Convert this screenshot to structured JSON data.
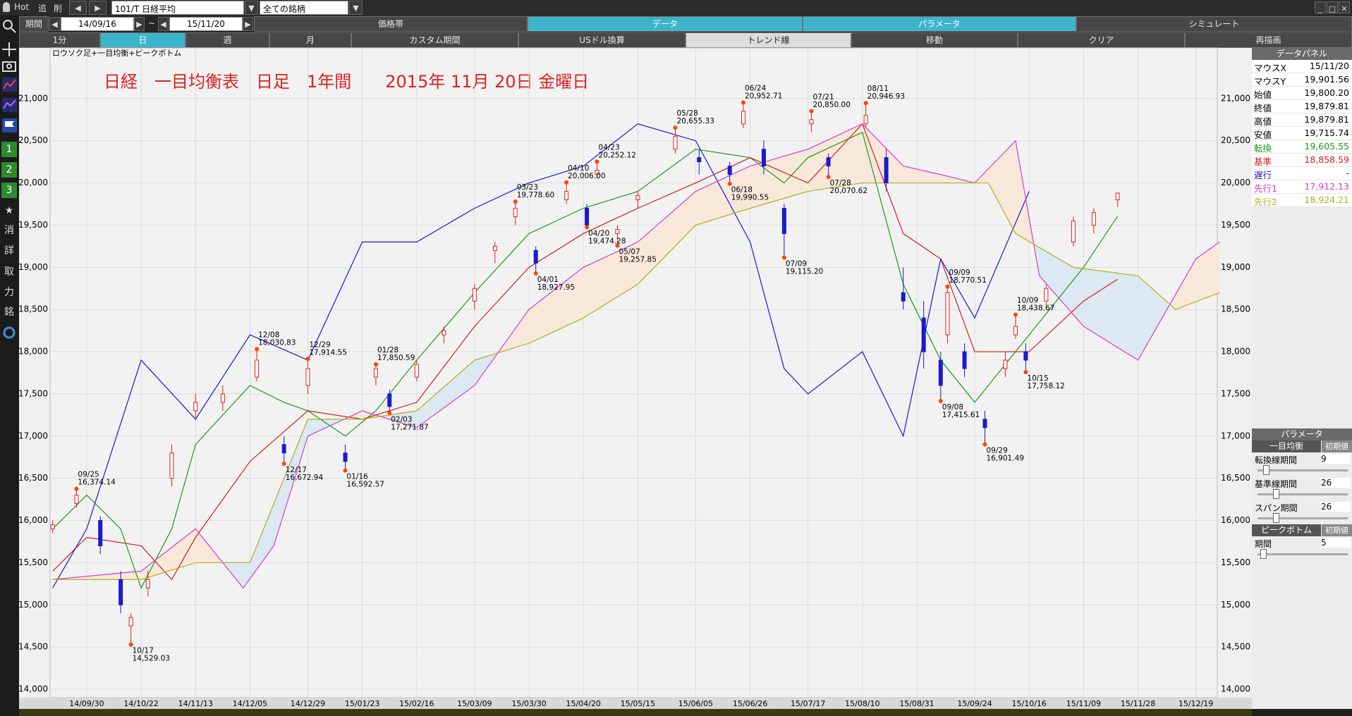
{
  "toolbar": {
    "hot": "Hot",
    "add": "追",
    "delete": "削",
    "symbol": "101/T 日経平均",
    "universe": "全ての銘柄",
    "period_label": "期間",
    "period_from": "14/09/16",
    "period_sep": "~",
    "period_to": "15/11/20",
    "tabs": [
      "価格帯",
      "データ",
      "パラメータ",
      "シミュレート"
    ],
    "buttons": [
      "1分",
      "日",
      "週",
      "月",
      "カスタム期間",
      "USドル換算",
      "トレンド線",
      "移動",
      "クリア",
      "再描画"
    ],
    "side": [
      "1",
      "2",
      "3",
      "★",
      "消",
      "詳",
      "取",
      "力",
      "銘"
    ]
  },
  "chart_data": {
    "type": "candlestick",
    "subtitle": "ロウソク足+一目均衡+ピークボトム",
    "title": "日経　一目均衡表　日足　1年間　　2015年 11月 20日 金曜日",
    "xlim": [
      -0.76,
      342.3
    ],
    "xticks": [
      {
        "value": 10,
        "label": "14/09/30"
      },
      {
        "value": 26,
        "label": "14/10/22"
      },
      {
        "value": 42,
        "label": "14/11/13"
      },
      {
        "value": 58,
        "label": "14/12/05"
      },
      {
        "value": 75,
        "label": "14/12/29"
      },
      {
        "value": 91,
        "label": "15/01/23"
      },
      {
        "value": 107,
        "label": "15/02/16"
      },
      {
        "value": 124,
        "label": "15/03/09"
      },
      {
        "value": 140,
        "label": "15/03/30"
      },
      {
        "value": 156,
        "label": "15/04/20"
      },
      {
        "value": 172,
        "label": "15/05/15"
      },
      {
        "value": 189,
        "label": "15/06/05"
      },
      {
        "value": 205,
        "label": "15/06/26"
      },
      {
        "value": 222,
        "label": "15/07/17"
      },
      {
        "value": 238,
        "label": "15/08/10"
      },
      {
        "value": 254,
        "label": "15/08/31"
      },
      {
        "value": 271,
        "label": "15/09/24"
      },
      {
        "value": 287,
        "label": "15/10/16"
      },
      {
        "value": 303,
        "label": "15/11/09"
      },
      {
        "value": 319,
        "label": "15/11/28"
      },
      {
        "value": 336,
        "label": "15/12/19"
      }
    ],
    "ylim": [
      13900,
      21600
    ],
    "yticks": [
      {
        "value": 14000,
        "label": "14,000"
      },
      {
        "value": 14500,
        "label": "14,500"
      },
      {
        "value": 15000,
        "label": "15,000"
      },
      {
        "value": 15500,
        "label": "15,500"
      },
      {
        "value": 16000,
        "label": "16,000"
      },
      {
        "value": 16500,
        "label": "16,500"
      },
      {
        "value": 17000,
        "label": "17,000"
      },
      {
        "value": 17500,
        "label": "17,500"
      },
      {
        "value": 18000,
        "label": "18,000"
      },
      {
        "value": 18500,
        "label": "18,500"
      },
      {
        "value": 19000,
        "label": "19,000"
      },
      {
        "value": 19500,
        "label": "19,500"
      },
      {
        "value": 20000,
        "label": "20,000"
      },
      {
        "value": 20500,
        "label": "20,500"
      },
      {
        "value": 21000,
        "label": "21,000"
      }
    ],
    "grid": true,
    "up_color": "#e02020",
    "down_color": "#1a1acc",
    "cloud_colors": [
      "#f8e8da",
      "#dce8f2"
    ],
    "candles": {
      "x": [
        0,
        7,
        14,
        20,
        23,
        28,
        35,
        42,
        50,
        60,
        68,
        75,
        86,
        95,
        99,
        107,
        115,
        124,
        130,
        136,
        142,
        151,
        157,
        160,
        166,
        172,
        183,
        190,
        199,
        203,
        209,
        215,
        223,
        228,
        239,
        245,
        250,
        256,
        261,
        263,
        268,
        274,
        280,
        283,
        286,
        292,
        300,
        306,
        313
      ],
      "open": [
        15900,
        16200,
        16000,
        15300,
        14750,
        15200,
        16500,
        17300,
        17400,
        17700,
        16900,
        17600,
        16800,
        17700,
        17500,
        17700,
        18200,
        18600,
        19200,
        19600,
        19200,
        19800,
        19700,
        20100,
        19400,
        19800,
        20400,
        20300,
        20200,
        20700,
        20400,
        19700,
        20700,
        20300,
        20700,
        20300,
        18700,
        18400,
        17900,
        18200,
        18000,
        17200,
        17800,
        18200,
        18000,
        18600,
        19300,
        19500,
        19800.2
      ],
      "high": [
        16000,
        16380,
        16050,
        15400,
        14900,
        15400,
        16900,
        17500,
        17600,
        18030,
        17000,
        17915,
        16900,
        17851,
        17550,
        17900,
        18300,
        18800,
        19300,
        19779,
        19250,
        20006,
        19750,
        20252,
        19500,
        19900,
        20655,
        20400,
        20250,
        20953,
        20500,
        19750,
        20850,
        20350,
        20947,
        20400,
        19000,
        18600,
        18000,
        18771,
        18100,
        17300,
        18000,
        18439,
        18100,
        18800,
        19600,
        19700,
        19879.81
      ],
      "low": [
        15850,
        16150,
        15600,
        14900,
        14529,
        15100,
        16400,
        17200,
        17300,
        17650,
        16673,
        17500,
        16593,
        17600,
        17272,
        17650,
        18100,
        18500,
        19050,
        19500,
        18928,
        19750,
        19474,
        20050,
        19258,
        19700,
        20350,
        20100,
        19991,
        20650,
        20100,
        19115,
        20600,
        20071,
        20650,
        19900,
        18500,
        17800,
        17416,
        18100,
        17700,
        16901,
        17700,
        18150,
        17758,
        18550,
        19250,
        19400,
        19715.74
      ],
      "close": [
        15950,
        16300,
        15700,
        15000,
        14850,
        15300,
        16800,
        17400,
        17500,
        17900,
        16800,
        17800,
        16700,
        17800,
        17350,
        17850,
        18250,
        18750,
        19250,
        19700,
        19050,
        19900,
        19500,
        20150,
        19450,
        19850,
        20550,
        20250,
        20100,
        20850,
        20200,
        19400,
        20750,
        20200,
        20800,
        20000,
        18600,
        18000,
        17600,
        18700,
        17800,
        17100,
        17900,
        18300,
        17900,
        18750,
        19550,
        19650,
        19879.81
      ]
    },
    "lines": [
      {
        "color": "#1a9a1a",
        "x": [
          0,
          10,
          20,
          26,
          35,
          42,
          58,
          68,
          75,
          86,
          95,
          107,
          124,
          140,
          156,
          172,
          189,
          205,
          215,
          222,
          238,
          250,
          261,
          271,
          287,
          303,
          313
        ],
        "values": [
          15900,
          16300,
          15900,
          15200,
          15900,
          16900,
          17600,
          17400,
          17300,
          17000,
          17300,
          17900,
          18700,
          19400,
          19700,
          19900,
          20400,
          20300,
          20000,
          20300,
          20600,
          18800,
          17900,
          17400,
          18200,
          19000,
          19605.55
        ]
      },
      {
        "color": "#d02020",
        "x": [
          0,
          10,
          26,
          35,
          42,
          58,
          75,
          91,
          107,
          124,
          140,
          156,
          172,
          189,
          205,
          222,
          238,
          250,
          261,
          271,
          287,
          303,
          313
        ],
        "values": [
          15400,
          15800,
          15700,
          15300,
          15800,
          16700,
          17300,
          17200,
          17400,
          18300,
          19000,
          19400,
          19700,
          20000,
          20300,
          20000,
          20700,
          19400,
          19100,
          18000,
          18000,
          18600,
          18858.59
        ]
      },
      {
        "color": "#1a1acc",
        "x": [
          0,
          10,
          26,
          42,
          58,
          75,
          91,
          107,
          124,
          140,
          156,
          172,
          189,
          205,
          215,
          222,
          238,
          250,
          261,
          271,
          287
        ],
        "values": [
          15200,
          15900,
          17900,
          17200,
          18200,
          17900,
          19300,
          19300,
          19700,
          20000,
          20200,
          20700,
          20500,
          19300,
          17800,
          17500,
          18000,
          17000,
          19100,
          18400,
          19900
        ]
      },
      {
        "color": "#d040d0",
        "x": [
          0,
          26,
          42,
          56,
          65,
          75,
          91,
          107,
          124,
          140,
          156,
          172,
          189,
          205,
          222,
          238,
          250,
          261,
          271,
          283,
          290,
          303,
          319,
          336,
          343
        ],
        "values": [
          15300,
          15400,
          15900,
          15200,
          15700,
          17000,
          17300,
          17100,
          17600,
          18500,
          19000,
          19300,
          19900,
          20200,
          20400,
          20700,
          20200,
          20100,
          20000,
          20500,
          18900,
          18300,
          17900,
          19100,
          19300
        ]
      },
      {
        "color": "#b0b020",
        "x": [
          0,
          26,
          42,
          58,
          75,
          91,
          107,
          124,
          140,
          156,
          172,
          189,
          205,
          222,
          238,
          261,
          275,
          283,
          300,
          319,
          330,
          343
        ],
        "values": [
          15300,
          15300,
          15500,
          15500,
          17200,
          17200,
          17300,
          17900,
          18100,
          18400,
          18800,
          19500,
          19700,
          19900,
          20000,
          20000,
          20000,
          19400,
          19000,
          18900,
          18500,
          18700
        ]
      }
    ],
    "marker_color": "#ff4500",
    "peaks": {
      "x": [
        7,
        60,
        75,
        95,
        136,
        151,
        160,
        183,
        203,
        223,
        239,
        263,
        283
      ],
      "dates": [
        "09/25",
        "12/08",
        "12/29",
        "01/28",
        "03/23",
        "04/10",
        "04/23",
        "05/28",
        "06/24",
        "07/21",
        "08/11",
        "09/09",
        "10/09"
      ],
      "values": [
        16374.14,
        18030.83,
        17914.55,
        17850.59,
        19778.6,
        20006.0,
        20252.12,
        20655.33,
        20952.71,
        20850.0,
        20946.93,
        18770.51,
        18438.67
      ],
      "value_labels": [
        "16,374.14",
        "18,030.83",
        "17,914.55",
        "17,850.59",
        "19,778.60",
        "20,006.00",
        "20,252.12",
        "20,655.33",
        "20,952.71",
        "20,850.00",
        "20,946.93",
        "18,770.51",
        "18,438.67"
      ]
    },
    "bottoms": {
      "x": [
        23,
        68,
        86,
        99,
        142,
        157,
        166,
        199,
        215,
        228,
        261,
        274,
        286
      ],
      "dates": [
        "10/17",
        "12/17",
        "01/16",
        "02/03",
        "04/01",
        "04/20",
        "05/07",
        "06/18",
        "07/09",
        "07/28",
        "09/08",
        "09/29",
        "10/15"
      ],
      "values": [
        14529.03,
        16672.94,
        16592.57,
        17271.87,
        18927.95,
        19474.28,
        19257.85,
        19990.55,
        19115.2,
        20070.62,
        17415.61,
        16901.49,
        17758.12
      ],
      "value_labels": [
        "14,529.03",
        "16,672.94",
        "16,592.57",
        "17,271.87",
        "18,927.95",
        "19,474.28",
        "19,257.85",
        "19,990.55",
        "19,115.20",
        "20,070.62",
        "17,415.61",
        "16,901.49",
        "17,758.12"
      ]
    }
  },
  "data_panel": {
    "title": "データパネル",
    "rows": [
      {
        "label": "マウスX",
        "value": "15/11/20",
        "color": "#000000"
      },
      {
        "label": "マウスY",
        "value": "19,901.56",
        "color": "#000000"
      },
      {
        "label": "始値",
        "value": "19,800.20",
        "color": "#000000"
      },
      {
        "label": "終値",
        "value": "19,879.81",
        "color": "#000000"
      },
      {
        "label": "高値",
        "value": "19,879.81",
        "color": "#000000"
      },
      {
        "label": "安値",
        "value": "19,715.74",
        "color": "#000000"
      },
      {
        "label": "転換",
        "value": "19,605.55",
        "color": "#1a9a1a"
      },
      {
        "label": "基準",
        "value": "18,858.59",
        "color": "#d02020"
      },
      {
        "label": "遅行",
        "value": "-",
        "color": "#1a1acc"
      },
      {
        "label": "先行1",
        "value": "17,912.13",
        "color": "#d040d0"
      },
      {
        "label": "先行2",
        "value": "18,924.21",
        "color": "#b0b020"
      }
    ]
  },
  "parameters": {
    "title": "パラメータ",
    "groups": [
      {
        "name": "一目均衡",
        "reset": "初期値",
        "items": [
          {
            "label": "転換線期間",
            "value": 9
          },
          {
            "label": "基準線期間",
            "value": 26
          },
          {
            "label": "スパン期間",
            "value": 26
          }
        ]
      },
      {
        "name": "ピークボトム",
        "reset": "初期値",
        "items": [
          {
            "label": "期間",
            "value": 5
          }
        ]
      }
    ]
  }
}
